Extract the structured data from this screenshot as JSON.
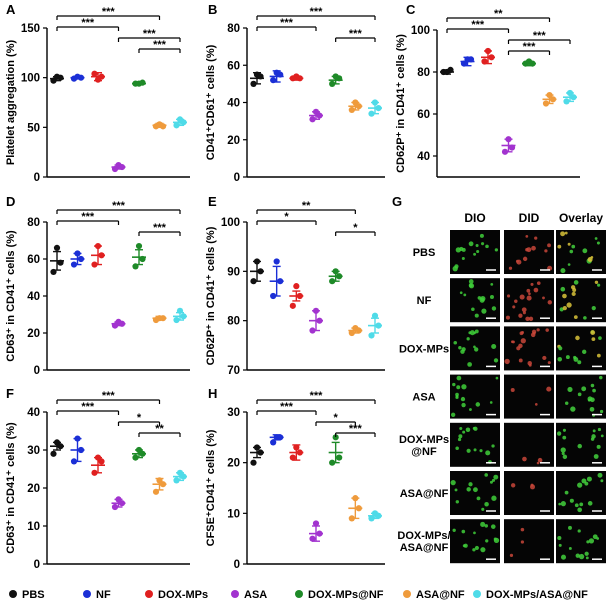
{
  "colors": {
    "PBS": "#111111",
    "NF": "#1b2fd6",
    "DOX-MPs": "#e02020",
    "ASA": "#a233cf",
    "DOX-MPs@NF": "#1e8a28",
    "ASA@NF": "#ef9b3c",
    "DOX-MPs/ASA@NF": "#4fdbe8"
  },
  "legend": [
    "PBS",
    "NF",
    "DOX-MPs",
    "ASA",
    "DOX-MPs@NF",
    "ASA@NF",
    "DOX-MPs/ASA@NF"
  ],
  "chart_data": [
    {
      "panel": "A",
      "type": "scatter",
      "categories": [
        "PBS",
        "NF",
        "DOX-MPs",
        "ASA",
        "DOX-MPs@NF",
        "ASA@NF",
        "DOX-MPs/ASA@NF"
      ],
      "ylabel": "Platelet aggregation (%)",
      "ylim": [
        0,
        150
      ],
      "yticks": [
        0,
        50,
        100,
        150
      ],
      "means": [
        99,
        100,
        101,
        10,
        94,
        52,
        55
      ],
      "errors": [
        2,
        1,
        4,
        2,
        1,
        2,
        3
      ],
      "points": [
        [
          97,
          101,
          100
        ],
        [
          99,
          101,
          100
        ],
        [
          104,
          98,
          101
        ],
        [
          8,
          12,
          10
        ],
        [
          94,
          94,
          95
        ],
        [
          51,
          53,
          51
        ],
        [
          52,
          58,
          55
        ]
      ],
      "brackets": [
        {
          "from": 0,
          "to": 5,
          "label": "***",
          "level": 0
        },
        {
          "from": 0,
          "to": 3,
          "label": "***",
          "level": 1
        },
        {
          "from": 3,
          "to": 6,
          "label": "***",
          "level": 2
        },
        {
          "from": 4,
          "to": 6,
          "label": "***",
          "level": 3
        }
      ]
    },
    {
      "panel": "B",
      "type": "scatter",
      "categories": [
        "PBS",
        "NF",
        "DOX-MPs",
        "ASA",
        "DOX-MPs@NF",
        "ASA@NF",
        "DOX-MPs/ASA@NF"
      ],
      "ylabel": "CD41⁺CD61⁺ cells (%)",
      "ylim": [
        0,
        80
      ],
      "yticks": [
        0,
        20,
        40,
        60,
        80
      ],
      "means": [
        53,
        54,
        53,
        33,
        52,
        38,
        37
      ],
      "errors": [
        3,
        3,
        1,
        2,
        2,
        2,
        3
      ],
      "points": [
        [
          50,
          55,
          54
        ],
        [
          52,
          56,
          55
        ],
        [
          53,
          54,
          53
        ],
        [
          31,
          35,
          33
        ],
        [
          50,
          54,
          53
        ],
        [
          36,
          40,
          38
        ],
        [
          34,
          40,
          37
        ]
      ],
      "brackets": [
        {
          "from": 0,
          "to": 6,
          "label": "***",
          "level": 0
        },
        {
          "from": 0,
          "to": 3,
          "label": "***",
          "level": 1
        },
        {
          "from": 4,
          "to": 6,
          "label": "***",
          "level": 2
        }
      ]
    },
    {
      "panel": "C",
      "type": "scatter",
      "categories": [
        "PBS",
        "NF",
        "DOX-MPs",
        "ASA",
        "DOX-MPs@NF",
        "ASA@NF",
        "DOX-MPs/ASA@NF"
      ],
      "ylabel": "CD62P⁺ in CD41⁺ cells (%)",
      "ylim": [
        30,
        100
      ],
      "yticks": [
        40,
        60,
        80,
        100
      ],
      "means": [
        80,
        85,
        87,
        45,
        84,
        67,
        68
      ],
      "errors": [
        1,
        2,
        3,
        3,
        1,
        2,
        2
      ],
      "points": [
        [
          80,
          80,
          81
        ],
        [
          84,
          86,
          86
        ],
        [
          85,
          90,
          87
        ],
        [
          42,
          48,
          44
        ],
        [
          84,
          85,
          84
        ],
        [
          65,
          69,
          67
        ],
        [
          66,
          70,
          68
        ]
      ],
      "brackets": [
        {
          "from": 0,
          "to": 5,
          "label": "**",
          "level": 0
        },
        {
          "from": 0,
          "to": 3,
          "label": "***",
          "level": 1
        },
        {
          "from": 3,
          "to": 6,
          "label": "***",
          "level": 2
        },
        {
          "from": 3,
          "to": 5,
          "label": "***",
          "level": 3
        }
      ]
    },
    {
      "panel": "D",
      "type": "scatter",
      "categories": [
        "PBS",
        "NF",
        "DOX-MPs",
        "ASA",
        "DOX-MPs@NF",
        "ASA@NF",
        "DOX-MPs/ASA@NF"
      ],
      "ylabel": "CD63⁺ in CD41⁺ cells (%)",
      "ylim": [
        0,
        80
      ],
      "yticks": [
        0,
        20,
        40,
        60,
        80
      ],
      "means": [
        59,
        60,
        62,
        25,
        61,
        28,
        29
      ],
      "errors": [
        5,
        3,
        5,
        1,
        4,
        1,
        2
      ],
      "points": [
        [
          53,
          66,
          58
        ],
        [
          57,
          63,
          60
        ],
        [
          57,
          67,
          62
        ],
        [
          24,
          26,
          25
        ],
        [
          56,
          67,
          60
        ],
        [
          27,
          28,
          28
        ],
        [
          27,
          32,
          29
        ]
      ],
      "brackets": [
        {
          "from": 0,
          "to": 6,
          "label": "***",
          "level": 0
        },
        {
          "from": 0,
          "to": 3,
          "label": "***",
          "level": 1
        },
        {
          "from": 4,
          "to": 6,
          "label": "***",
          "level": 2
        }
      ]
    },
    {
      "panel": "E",
      "type": "scatter",
      "categories": [
        "PBS",
        "NF",
        "DOX-MPs",
        "ASA",
        "DOX-MPs@NF",
        "ASA@NF",
        "DOX-MPs/ASA@NF"
      ],
      "ylabel": "CD62P⁺ in CD41⁺ cells (%)",
      "ylim": [
        70,
        100
      ],
      "yticks": [
        70,
        80,
        90,
        100
      ],
      "means": [
        90,
        88,
        85,
        80,
        89,
        78,
        79
      ],
      "errors": [
        2,
        3,
        1,
        2,
        1,
        0.5,
        1.5
      ],
      "points": [
        [
          88,
          92,
          90
        ],
        [
          85,
          92,
          88
        ],
        [
          83,
          87,
          85
        ],
        [
          78,
          82,
          80
        ],
        [
          88,
          90,
          89
        ],
        [
          77.5,
          78.5,
          78
        ],
        [
          77,
          81,
          79
        ]
      ],
      "brackets": [
        {
          "from": 0,
          "to": 5,
          "label": "**",
          "level": 0
        },
        {
          "from": 0,
          "to": 3,
          "label": "*",
          "level": 1
        },
        {
          "from": 4,
          "to": 6,
          "label": "*",
          "level": 2
        }
      ]
    },
    {
      "panel": "F",
      "type": "scatter",
      "categories": [
        "PBS",
        "NF",
        "DOX-MPs",
        "ASA",
        "DOX-MPs@NF",
        "ASA@NF",
        "DOX-MPs/ASA@NF"
      ],
      "ylabel": "CD63⁺ in CD41⁺ cells (%)",
      "ylim": [
        0,
        40
      ],
      "yticks": [
        0,
        10,
        20,
        30,
        40
      ],
      "means": [
        31,
        30,
        26,
        16,
        29,
        21,
        23
      ],
      "errors": [
        1,
        3,
        2,
        1,
        1,
        1.5,
        1
      ],
      "points": [
        [
          29,
          32,
          31
        ],
        [
          27,
          33,
          30
        ],
        [
          24,
          28,
          27
        ],
        [
          15,
          17,
          16
        ],
        [
          28,
          30,
          29
        ],
        [
          19,
          22,
          21
        ],
        [
          22,
          24,
          23
        ]
      ],
      "brackets": [
        {
          "from": 0,
          "to": 5,
          "label": "***",
          "level": 0
        },
        {
          "from": 0,
          "to": 3,
          "label": "***",
          "level": 1
        },
        {
          "from": 3,
          "to": 5,
          "label": "*",
          "level": 2
        },
        {
          "from": 4,
          "to": 6,
          "label": "**",
          "level": 3
        }
      ]
    },
    {
      "panel": "H",
      "type": "scatter",
      "categories": [
        "PBS",
        "NF",
        "DOX-MPs",
        "ASA",
        "DOX-MPs@NF",
        "ASA@NF",
        "DOX-MPs/ASA@NF"
      ],
      "ylabel": "CFSE⁺CD41⁺ cells (%)",
      "ylim": [
        0,
        30
      ],
      "yticks": [
        0,
        10,
        20,
        30
      ],
      "means": [
        22,
        25,
        22,
        6,
        22,
        11,
        9.5
      ],
      "errors": [
        1,
        0.5,
        1.5,
        1.5,
        2,
        2,
        0.5
      ],
      "points": [
        [
          20,
          23,
          22
        ],
        [
          24,
          25,
          25
        ],
        [
          21,
          23,
          22
        ],
        [
          5,
          8,
          6
        ],
        [
          20,
          25,
          21
        ],
        [
          9,
          13,
          11
        ],
        [
          9,
          10,
          9.5
        ]
      ],
      "brackets": [
        {
          "from": 0,
          "to": 6,
          "label": "***",
          "level": 0
        },
        {
          "from": 0,
          "to": 3,
          "label": "***",
          "level": 1
        },
        {
          "from": 3,
          "to": 5,
          "label": "*",
          "level": 2
        },
        {
          "from": 4,
          "to": 6,
          "label": "***",
          "level": 3
        }
      ]
    }
  ],
  "panels_text": {
    "A": "A",
    "B": "B",
    "C": "C",
    "D": "D",
    "E": "E",
    "F": "F",
    "G": "G",
    "H": "H"
  },
  "micro": {
    "columns": [
      "DIO",
      "DID",
      "Overlay"
    ],
    "rows": [
      "PBS",
      "NF",
      "DOX-MPs",
      "ASA",
      "DOX-MPs @NF",
      "ASA@NF",
      "DOX-MPs/ ASA@NF"
    ]
  }
}
